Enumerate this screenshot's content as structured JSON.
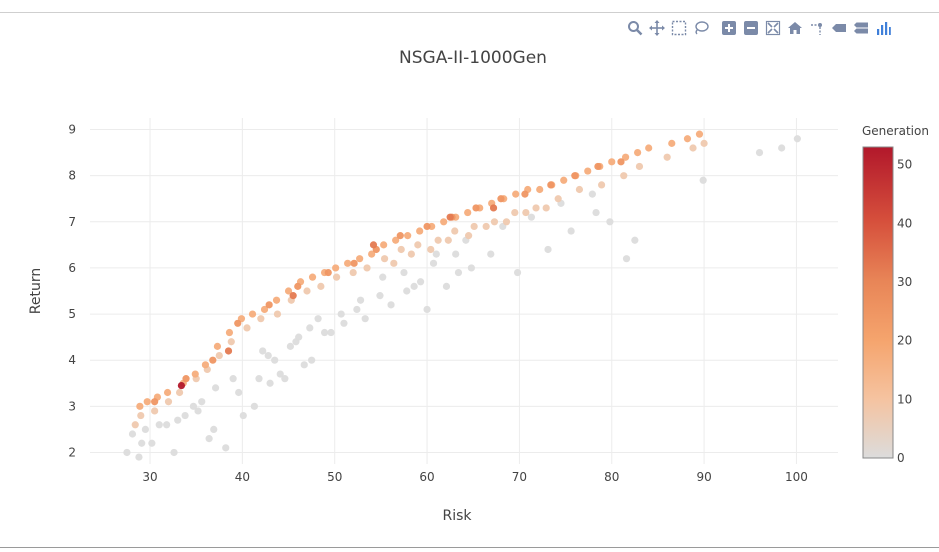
{
  "modebar": {
    "buttons": [
      "zoom-icon",
      "pan-icon",
      "box-select-icon",
      "lasso-select-icon",
      "zoom-in-icon",
      "zoom-out-icon",
      "autoscale-icon",
      "reset-axes-icon",
      "spike-lines-icon",
      "hover-closest-icon",
      "hover-compare-icon",
      "plotly-logo-icon"
    ],
    "icon_color": "#7b8aa8"
  },
  "chart_data": {
    "type": "scatter",
    "title": "NSGA-II-1000Gen",
    "xlabel": "Risk",
    "ylabel": "Return",
    "xlim": [
      23.5,
      104.5
    ],
    "ylim": [
      1.75,
      9.25
    ],
    "xticks": [
      30,
      40,
      50,
      60,
      70,
      80,
      90,
      100
    ],
    "yticks": [
      2,
      3,
      4,
      5,
      6,
      7,
      8,
      9
    ],
    "grid": true,
    "colorbar": {
      "title": "Generation",
      "range": [
        0,
        53
      ],
      "ticks": [
        0,
        10,
        20,
        30,
        40,
        50
      ],
      "colorscale": [
        "#dcdcdc",
        "#f5c3a0",
        "#f5a46d",
        "#e88557",
        "#d6503c",
        "#b2182b"
      ]
    },
    "series": [
      {
        "generation": 0,
        "x": [
          27.5,
          28.8,
          30.2,
          32.6,
          28.1,
          31.0,
          29.5,
          33.8,
          35.2,
          36.4,
          38.2,
          33.0,
          35.6,
          36.9,
          40.1,
          41.3,
          39.6,
          43.0,
          44.6,
          42.2,
          45.8,
          46.7,
          47.5,
          48.9,
          44.1,
          51.0,
          52.4,
          53.3,
          54.9,
          56.1,
          57.8,
          59.3,
          60.0,
          62.1,
          63.4,
          64.8,
          66.9,
          69.8,
          73.1,
          75.6,
          78.3,
          79.8,
          81.6,
          82.5,
          89.9,
          96.0,
          98.4,
          100.1,
          55.2,
          57.5,
          61.0,
          64.2,
          68.2,
          71.3,
          74.5,
          77.9,
          42.8,
          37.1,
          39.0,
          45.2,
          47.3,
          49.6,
          50.7,
          52.8,
          58.6,
          60.7,
          63.1,
          29.1,
          31.8,
          34.7,
          41.8,
          43.5,
          46.1,
          48.2
        ],
        "y": [
          2.0,
          1.9,
          2.2,
          2.0,
          2.4,
          2.6,
          2.5,
          2.8,
          2.9,
          2.3,
          2.1,
          2.7,
          3.1,
          2.5,
          2.8,
          3.0,
          3.3,
          3.5,
          3.6,
          4.2,
          4.4,
          3.9,
          4.0,
          4.6,
          3.7,
          4.8,
          5.1,
          4.9,
          5.4,
          5.2,
          5.5,
          5.7,
          5.1,
          5.6,
          5.9,
          6.0,
          6.3,
          5.9,
          6.4,
          6.8,
          7.2,
          7.0,
          6.2,
          6.6,
          7.9,
          8.5,
          8.6,
          8.8,
          5.8,
          5.9,
          6.3,
          6.6,
          6.9,
          7.1,
          7.4,
          7.6,
          4.1,
          3.4,
          3.6,
          4.3,
          4.7,
          4.6,
          5.0,
          5.3,
          5.6,
          6.1,
          6.3,
          2.2,
          2.6,
          3.0,
          3.6,
          4.0,
          4.5,
          4.9
        ]
      },
      {
        "generation": 8,
        "x": [
          28.4,
          29.0,
          30.5,
          32.0,
          33.2,
          35.0,
          36.2,
          37.5,
          38.8,
          40.5,
          42.0,
          43.8,
          45.3,
          47.0,
          48.5,
          50.2,
          52.0,
          53.5,
          55.4,
          57.2,
          59.0,
          61.2,
          63.0,
          65.1,
          67.3,
          69.5,
          71.8,
          74.2,
          76.5,
          78.9,
          81.3,
          83.0,
          86.0,
          88.8,
          90.0,
          56.4,
          58.3,
          60.4,
          62.3,
          64.5,
          66.4,
          68.6,
          70.7,
          72.9
        ],
        "y": [
          2.6,
          2.8,
          2.9,
          3.1,
          3.3,
          3.6,
          3.8,
          4.1,
          4.4,
          4.7,
          4.9,
          5.0,
          5.3,
          5.5,
          5.6,
          5.8,
          5.9,
          6.0,
          6.2,
          6.4,
          6.5,
          6.6,
          6.8,
          6.9,
          7.0,
          7.2,
          7.3,
          7.5,
          7.7,
          7.8,
          8.0,
          8.2,
          8.4,
          8.6,
          8.7,
          6.1,
          6.3,
          6.4,
          6.6,
          6.7,
          6.9,
          7.0,
          7.2,
          7.3
        ]
      },
      {
        "generation": 18,
        "x": [
          28.9,
          29.7,
          30.8,
          31.9,
          33.6,
          34.9,
          36.0,
          37.3,
          38.6,
          39.9,
          41.1,
          42.4,
          43.7,
          45.0,
          46.3,
          47.6,
          48.9,
          50.1,
          51.4,
          52.7,
          54.0,
          55.3,
          56.6,
          57.9,
          59.2,
          60.5,
          61.8,
          63.1,
          64.4,
          65.7,
          67.0,
          68.3,
          69.6,
          70.9,
          72.2,
          73.5,
          74.8,
          76.1,
          77.4,
          78.7,
          80.0,
          81.5,
          82.8,
          84.0,
          86.5,
          88.2,
          89.5
        ],
        "y": [
          3.0,
          3.1,
          3.2,
          3.3,
          3.5,
          3.7,
          3.9,
          4.3,
          4.6,
          4.9,
          5.0,
          5.1,
          5.3,
          5.5,
          5.7,
          5.8,
          5.9,
          6.0,
          6.1,
          6.2,
          6.3,
          6.5,
          6.6,
          6.7,
          6.8,
          6.9,
          7.0,
          7.1,
          7.2,
          7.3,
          7.4,
          7.5,
          7.6,
          7.7,
          7.7,
          7.8,
          7.9,
          8.0,
          8.1,
          8.2,
          8.3,
          8.4,
          8.5,
          8.6,
          8.7,
          8.8,
          8.9
        ]
      },
      {
        "generation": 26,
        "x": [
          30.5,
          33.9,
          36.8,
          39.5,
          42.9,
          46.0,
          49.3,
          52.1,
          54.5,
          57.1,
          60.0,
          62.7,
          65.3,
          68.0,
          70.6,
          73.4,
          76.0,
          78.5,
          81.0
        ],
        "y": [
          3.1,
          3.6,
          4.0,
          4.8,
          5.2,
          5.6,
          5.9,
          6.1,
          6.4,
          6.7,
          6.9,
          7.1,
          7.3,
          7.5,
          7.6,
          7.8,
          8.0,
          8.2,
          8.3
        ]
      },
      {
        "generation": 34,
        "x": [
          38.5,
          45.5,
          54.2,
          62.5,
          67.2
        ],
        "y": [
          4.2,
          5.4,
          6.5,
          7.1,
          7.3
        ]
      },
      {
        "generation": 53,
        "x": [
          33.4
        ],
        "y": [
          3.45
        ]
      }
    ]
  }
}
